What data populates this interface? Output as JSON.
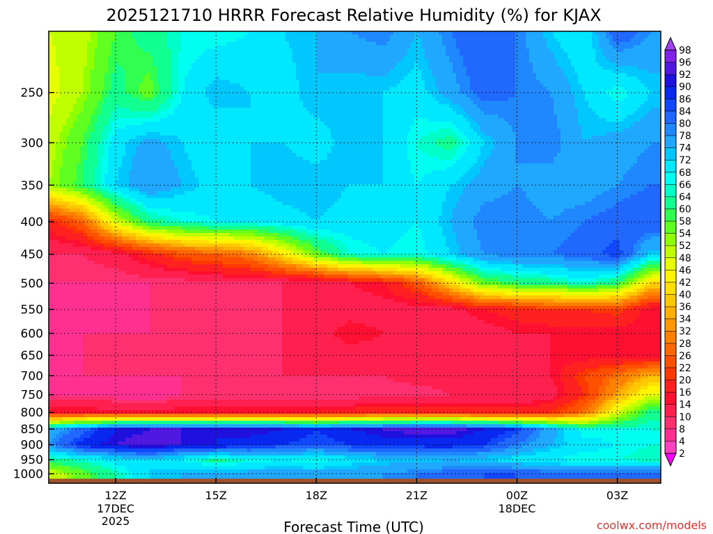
{
  "chart_data": {
    "type": "heatmap",
    "title": "2025121710 HRRR Forecast Relative Humidity (%) for KJAX",
    "xlabel": "Forecast Time (UTC)",
    "ylabel": "",
    "watermark": "coolwx.com/models",
    "x_hours": [
      10,
      11,
      12,
      13,
      14,
      15,
      16,
      17,
      18,
      19,
      20,
      21,
      22,
      23,
      24,
      25,
      26,
      27,
      28
    ],
    "xlim": [
      10,
      28.3
    ],
    "x_ticks": [
      {
        "hour": 12,
        "label": "12Z",
        "date": "17DEC",
        "year": "2025"
      },
      {
        "hour": 15,
        "label": "15Z",
        "date": "",
        "year": ""
      },
      {
        "hour": 18,
        "label": "18Z",
        "date": "",
        "year": ""
      },
      {
        "hour": 21,
        "label": "21Z",
        "date": "",
        "year": ""
      },
      {
        "hour": 24,
        "label": "00Z",
        "date": "18DEC",
        "year": ""
      },
      {
        "hour": 27,
        "label": "03Z",
        "date": "",
        "year": ""
      }
    ],
    "y_scale": "log",
    "ylim": [
      1035,
      200
    ],
    "y_ticks": [
      250,
      300,
      350,
      400,
      450,
      500,
      550,
      600,
      650,
      700,
      750,
      800,
      850,
      900,
      950,
      1000
    ],
    "levels_hpa": [
      200,
      250,
      300,
      350,
      400,
      450,
      500,
      550,
      600,
      650,
      700,
      750,
      800,
      850,
      900,
      950,
      1000
    ],
    "rh_percent": [
      [
        48,
        50,
        58,
        62,
        66,
        66,
        68,
        72,
        74,
        78,
        80,
        74,
        80,
        84,
        80,
        72,
        68,
        84,
        78
      ],
      [
        46,
        52,
        62,
        56,
        68,
        74,
        72,
        70,
        74,
        72,
        72,
        70,
        76,
        82,
        80,
        78,
        72,
        66,
        72
      ],
      [
        50,
        58,
        70,
        76,
        72,
        68,
        72,
        72,
        70,
        74,
        72,
        66,
        62,
        72,
        78,
        80,
        74,
        76,
        78
      ],
      [
        52,
        60,
        72,
        78,
        74,
        70,
        72,
        74,
        74,
        72,
        72,
        68,
        72,
        76,
        78,
        76,
        76,
        78,
        80
      ],
      [
        18,
        26,
        48,
        62,
        66,
        68,
        68,
        70,
        72,
        70,
        70,
        68,
        74,
        80,
        80,
        78,
        80,
        82,
        84
      ],
      [
        10,
        10,
        12,
        18,
        24,
        26,
        30,
        42,
        56,
        66,
        68,
        66,
        72,
        78,
        80,
        80,
        82,
        86,
        72
      ],
      [
        8,
        8,
        8,
        8,
        8,
        10,
        10,
        10,
        10,
        14,
        16,
        24,
        40,
        56,
        60,
        62,
        66,
        60,
        40
      ],
      [
        8,
        6,
        6,
        8,
        8,
        8,
        8,
        10,
        10,
        12,
        12,
        12,
        12,
        16,
        18,
        20,
        20,
        22,
        14
      ],
      [
        8,
        8,
        8,
        8,
        8,
        8,
        8,
        10,
        12,
        16,
        14,
        12,
        12,
        12,
        14,
        14,
        14,
        14,
        14
      ],
      [
        6,
        8,
        8,
        8,
        8,
        8,
        8,
        10,
        10,
        12,
        12,
        12,
        12,
        12,
        12,
        14,
        14,
        14,
        14
      ],
      [
        6,
        8,
        8,
        8,
        8,
        8,
        8,
        10,
        10,
        10,
        10,
        12,
        12,
        12,
        12,
        14,
        22,
        28,
        36
      ],
      [
        8,
        8,
        6,
        4,
        8,
        8,
        8,
        8,
        8,
        8,
        8,
        8,
        10,
        10,
        10,
        12,
        20,
        34,
        48
      ],
      [
        16,
        16,
        16,
        16,
        16,
        16,
        16,
        16,
        16,
        18,
        20,
        20,
        20,
        18,
        18,
        20,
        28,
        48,
        62
      ],
      [
        74,
        82,
        90,
        92,
        92,
        90,
        92,
        90,
        86,
        90,
        92,
        94,
        94,
        90,
        86,
        76,
        66,
        66,
        66
      ],
      [
        78,
        88,
        92,
        94,
        92,
        90,
        88,
        86,
        84,
        86,
        88,
        88,
        88,
        86,
        80,
        74,
        70,
        68,
        66
      ],
      [
        62,
        66,
        70,
        72,
        68,
        62,
        66,
        68,
        66,
        70,
        72,
        72,
        74,
        72,
        70,
        68,
        66,
        66,
        64
      ],
      [
        48,
        56,
        64,
        72,
        74,
        76,
        76,
        76,
        76,
        76,
        78,
        80,
        82,
        84,
        84,
        82,
        82,
        82,
        82
      ]
    ],
    "color_scale": {
      "labels": [
        2,
        4,
        8,
        10,
        14,
        16,
        20,
        22,
        26,
        28,
        32,
        34,
        36,
        40,
        42,
        46,
        48,
        52,
        54,
        58,
        60,
        64,
        66,
        68,
        72,
        74,
        78,
        80,
        84,
        86,
        90,
        92,
        96,
        98
      ],
      "colors": [
        "#ff20e0",
        "#ff40c0",
        "#ff3090",
        "#ff3070",
        "#ff2050",
        "#ff1030",
        "#ff2020",
        "#ff3800",
        "#ff5000",
        "#ff6800",
        "#ff8000",
        "#ff9800",
        "#ffb000",
        "#ffc800",
        "#ffe000",
        "#fff400",
        "#e8ff00",
        "#c0ff00",
        "#90ff00",
        "#60ff20",
        "#30ff50",
        "#10ff90",
        "#00ffc8",
        "#00fff0",
        "#00e8ff",
        "#00c8ff",
        "#20a8ff",
        "#2088ff",
        "#2068ff",
        "#1048ff",
        "#0828f0",
        "#2010e0",
        "#5018e0",
        "#8020e8",
        "#a040f0"
      ],
      "lower_arrow": "#ff00ff",
      "upper_arrow": "#a040f0"
    },
    "ground": {
      "level_hpa": 1018,
      "color": "#a0522d"
    },
    "grid": "dotted"
  }
}
